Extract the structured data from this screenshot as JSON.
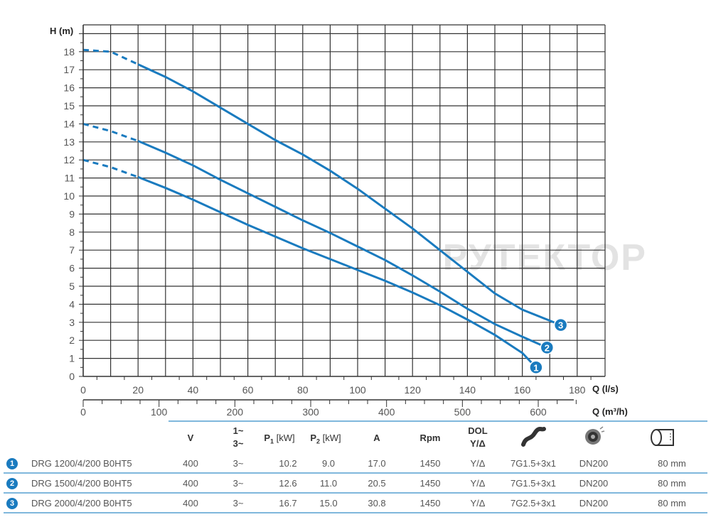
{
  "chart_data": {
    "type": "line",
    "ylabel": "H (m)",
    "xlabel": "Q (l/s)",
    "xlabel2": "Q (m³/h)",
    "xlim": [
      0,
      190
    ],
    "ylim": [
      0,
      19.6
    ],
    "x2lim": [
      0,
      684
    ],
    "grid": true,
    "x_ticks": [
      0,
      20,
      40,
      60,
      80,
      100,
      120,
      140,
      160,
      180
    ],
    "x2_ticks": [
      0,
      100,
      200,
      300,
      400,
      500,
      600
    ],
    "y_ticks": [
      0,
      1,
      2,
      3,
      4,
      5,
      6,
      7,
      8,
      9,
      10,
      11,
      12,
      13,
      14,
      15,
      16,
      17,
      18
    ],
    "line_color": "#1a7bbf",
    "dashed_until_x": 20,
    "series": [
      {
        "name": "1",
        "x": [
          0,
          10,
          20,
          30,
          40,
          50,
          60,
          70,
          80,
          90,
          100,
          110,
          120,
          130,
          140,
          150,
          160,
          165
        ],
        "y": [
          12,
          11.6,
          11.05,
          10.45,
          9.8,
          9.1,
          8.4,
          7.75,
          7.1,
          6.5,
          5.9,
          5.3,
          4.65,
          3.95,
          3.15,
          2.3,
          1.3,
          0.5
        ]
      },
      {
        "name": "2",
        "x": [
          0,
          10,
          20,
          30,
          40,
          50,
          60,
          70,
          80,
          90,
          100,
          110,
          120,
          130,
          140,
          150,
          160,
          169
        ],
        "y": [
          14,
          13.6,
          13.05,
          12.4,
          11.7,
          10.9,
          10.15,
          9.4,
          8.65,
          7.95,
          7.2,
          6.45,
          5.6,
          4.7,
          3.75,
          2.9,
          2.2,
          1.6
        ]
      },
      {
        "name": "3",
        "x": [
          0,
          10,
          20,
          30,
          40,
          50,
          60,
          70,
          80,
          90,
          100,
          110,
          120,
          130,
          140,
          150,
          160,
          174
        ],
        "y": [
          18.1,
          18.0,
          17.3,
          16.6,
          15.8,
          14.9,
          14.0,
          13.1,
          12.3,
          11.4,
          10.4,
          9.3,
          8.2,
          7.0,
          5.8,
          4.6,
          3.7,
          2.85
        ]
      }
    ]
  },
  "watermark": "РУТЕКТОР",
  "table": {
    "headers": {
      "v": "V",
      "phase_top": "1~",
      "phase_bottom": "3~",
      "p1": "P",
      "p1_sub": "1",
      "p1_unit": " [kW]",
      "p2": "P",
      "p2_sub": "2",
      "p2_unit": " [kW]",
      "a": "A",
      "rpm": "Rpm",
      "dol_top": "DOL",
      "dol_bottom": "Y/Δ",
      "cable_icon": "cable-icon",
      "impeller_icon": "impeller-icon",
      "pipe_icon": "pipe-icon"
    },
    "rows": [
      {
        "num": "1",
        "model": "DRG 1200/4/200 B0HT5",
        "v": "400",
        "phase": "3~",
        "p1": "10.2",
        "p2": "9.0",
        "a": "17.0",
        "rpm": "1450",
        "dol": "Y/Δ",
        "cable": "7G1.5+3x1",
        "dn": "DN200",
        "passage": "80 mm"
      },
      {
        "num": "2",
        "model": "DRG 1500/4/200 B0HT5",
        "v": "400",
        "phase": "3~",
        "p1": "12.6",
        "p2": "11.0",
        "a": "20.5",
        "rpm": "1450",
        "dol": "Y/Δ",
        "cable": "7G1.5+3x1",
        "dn": "DN200",
        "passage": "80 mm"
      },
      {
        "num": "3",
        "model": "DRG 2000/4/200 B0HT5",
        "v": "400",
        "phase": "3~",
        "p1": "16.7",
        "p2": "15.0",
        "a": "30.8",
        "rpm": "1450",
        "dol": "Y/Δ",
        "cable": "7G2.5+3x1",
        "dn": "DN200",
        "passage": "80 mm"
      }
    ]
  }
}
